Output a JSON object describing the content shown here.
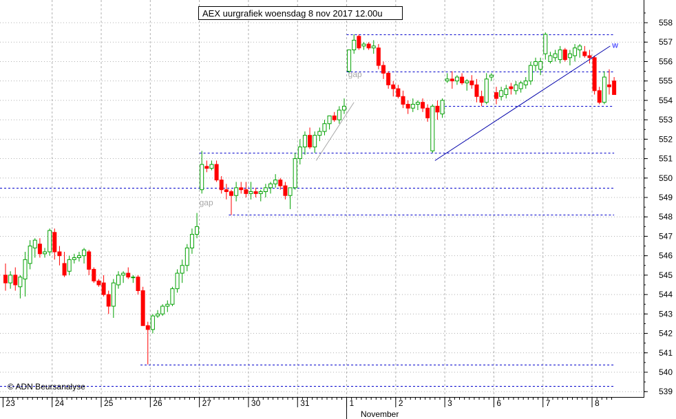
{
  "chart_data": {
    "type": "candlestick",
    "title": "AEX uurgrafiek woensdag 8 nov 2017 12.00u",
    "watermark": "© ADN Beursanalyse",
    "month_label": "November",
    "ylim": [
      538.6,
      559.0
    ],
    "y_ticks": [
      539,
      540,
      541,
      542,
      543,
      544,
      545,
      546,
      547,
      548,
      549,
      550,
      551,
      552,
      553,
      554,
      555,
      556,
      557,
      558
    ],
    "x_days": [
      {
        "label": "23",
        "start": 0
      },
      {
        "label": "24",
        "start": 10
      },
      {
        "label": "25",
        "start": 20
      },
      {
        "label": "26",
        "start": 30
      },
      {
        "label": "27",
        "start": 40
      },
      {
        "label": "30",
        "start": 50
      },
      {
        "label": "31",
        "start": 60
      },
      {
        "label": "1",
        "start": 70
      },
      {
        "label": "2",
        "start": 80
      },
      {
        "label": "3",
        "start": 90
      },
      {
        "label": "6",
        "start": 100
      },
      {
        "label": "7",
        "start": 110
      },
      {
        "label": "8",
        "start": 120
      }
    ],
    "month_start_index": 70,
    "colors": {
      "up": "#00a000",
      "down": "#ff0000",
      "level": "#0000cc",
      "trend": "#0000aa",
      "grid": "#b0b0b0",
      "annotation": "#a8a8a8",
      "label_w": "#2020ff"
    },
    "candles": [
      [
        545.0,
        545.6,
        544.2,
        544.6
      ],
      [
        544.6,
        545.2,
        544.3,
        545.0
      ],
      [
        545.0,
        545.4,
        544.2,
        544.5
      ],
      [
        544.4,
        545.0,
        543.8,
        544.9
      ],
      [
        544.8,
        546.2,
        543.9,
        545.8
      ],
      [
        545.6,
        546.8,
        545.3,
        546.5
      ],
      [
        546.4,
        546.9,
        545.9,
        546.8
      ],
      [
        546.6,
        546.9,
        545.9,
        546.1
      ],
      [
        546.1,
        546.4,
        545.9,
        546.2
      ],
      [
        546.2,
        547.4,
        546.0,
        547.3
      ],
      [
        547.2,
        547.4,
        545.8,
        546.2
      ],
      [
        546.2,
        546.5,
        545.5,
        546.0
      ],
      [
        545.6,
        546.2,
        544.9,
        545.0
      ],
      [
        545.2,
        546.0,
        545.0,
        545.8
      ],
      [
        545.8,
        546.1,
        545.6,
        545.9
      ],
      [
        545.9,
        546.2,
        545.7,
        546.0
      ],
      [
        546.0,
        546.4,
        545.6,
        546.3
      ],
      [
        546.2,
        546.3,
        545.0,
        545.3
      ],
      [
        545.3,
        545.4,
        544.6,
        544.7
      ],
      [
        544.7,
        544.8,
        544.4,
        544.5
      ],
      [
        544.6,
        545.0,
        543.9,
        544.0
      ],
      [
        544.0,
        544.2,
        543.0,
        543.4
      ],
      [
        543.4,
        544.8,
        542.8,
        544.6
      ],
      [
        544.5,
        545.2,
        544.3,
        545.0
      ],
      [
        545.0,
        545.2,
        544.6,
        545.1
      ],
      [
        545.1,
        545.4,
        544.8,
        544.9
      ],
      [
        544.9,
        545.0,
        544.6,
        544.9
      ],
      [
        544.9,
        545.0,
        544.0,
        544.2
      ],
      [
        544.2,
        544.4,
        542.5,
        542.4
      ],
      [
        542.4,
        542.6,
        540.4,
        542.2
      ],
      [
        542.2,
        543.0,
        542.0,
        542.9
      ],
      [
        542.9,
        543.2,
        542.8,
        543.0
      ],
      [
        543.0,
        543.5,
        542.9,
        543.4
      ],
      [
        543.4,
        543.7,
        543.1,
        543.5
      ],
      [
        543.5,
        544.4,
        543.4,
        544.3
      ],
      [
        544.3,
        545.3,
        544.1,
        545.1
      ],
      [
        545.1,
        545.8,
        544.6,
        545.5
      ],
      [
        545.5,
        546.6,
        545.2,
        546.4
      ],
      [
        546.4,
        547.4,
        546.1,
        547.1
      ],
      [
        547.1,
        548.2,
        546.9,
        547.5
      ],
      [
        549.4,
        551.4,
        549.2,
        550.7
      ],
      [
        550.6,
        550.9,
        550.3,
        550.5
      ],
      [
        550.5,
        550.9,
        550.4,
        550.7
      ],
      [
        550.7,
        550.9,
        549.8,
        549.9
      ],
      [
        549.9,
        550.1,
        549.2,
        549.4
      ],
      [
        549.4,
        549.7,
        548.9,
        549.3
      ],
      [
        549.3,
        549.4,
        548.1,
        549.1
      ],
      [
        549.1,
        549.8,
        548.8,
        549.5
      ],
      [
        549.5,
        549.8,
        549.2,
        549.4
      ],
      [
        549.4,
        549.8,
        549.0,
        549.2
      ],
      [
        549.2,
        549.8,
        548.9,
        549.3
      ],
      [
        549.3,
        549.5,
        549.0,
        549.2
      ],
      [
        549.2,
        549.4,
        548.8,
        549.3
      ],
      [
        549.3,
        549.7,
        549.0,
        549.5
      ],
      [
        549.5,
        549.8,
        549.2,
        549.7
      ],
      [
        549.7,
        550.2,
        549.5,
        549.9
      ],
      [
        549.9,
        550.0,
        549.4,
        549.6
      ],
      [
        549.6,
        549.8,
        548.9,
        549.1
      ],
      [
        549.1,
        549.3,
        548.4,
        549.5
      ],
      [
        549.5,
        551.3,
        549.4,
        551.0
      ],
      [
        551.0,
        552.0,
        550.7,
        551.6
      ],
      [
        551.6,
        552.4,
        551.2,
        552.2
      ],
      [
        552.2,
        552.6,
        551.5,
        551.6
      ],
      [
        551.6,
        552.4,
        551.3,
        552.2
      ],
      [
        552.2,
        552.6,
        551.9,
        552.4
      ],
      [
        552.4,
        553.0,
        552.2,
        552.8
      ],
      [
        552.8,
        553.2,
        552.5,
        553.2
      ],
      [
        553.2,
        553.4,
        552.9,
        553.0
      ],
      [
        553.0,
        553.7,
        552.8,
        553.5
      ],
      [
        553.5,
        554.1,
        553.3,
        553.7
      ],
      [
        555.5,
        556.6,
        555.4,
        556.6
      ],
      [
        556.6,
        557.4,
        556.4,
        557.1
      ],
      [
        557.3,
        557.4,
        556.6,
        556.7
      ],
      [
        556.8,
        557.0,
        556.6,
        556.9
      ],
      [
        556.9,
        557.0,
        556.6,
        556.7
      ],
      [
        556.7,
        557.1,
        556.4,
        556.8
      ],
      [
        556.7,
        556.9,
        555.6,
        555.8
      ],
      [
        555.8,
        556.0,
        555.1,
        555.4
      ],
      [
        555.4,
        555.5,
        554.6,
        554.8
      ],
      [
        554.8,
        555.0,
        554.2,
        554.6
      ],
      [
        554.6,
        554.8,
        554.1,
        554.2
      ],
      [
        554.2,
        554.5,
        553.6,
        553.8
      ],
      [
        553.8,
        554.0,
        553.3,
        553.6
      ],
      [
        553.6,
        554.1,
        553.4,
        553.8
      ],
      [
        553.8,
        554.0,
        553.5,
        553.9
      ],
      [
        553.9,
        554.1,
        553.4,
        553.6
      ],
      [
        553.6,
        553.8,
        552.9,
        553.1
      ],
      [
        551.4,
        553.8,
        551.3,
        553.7
      ],
      [
        553.7,
        554.0,
        553.0,
        553.4
      ],
      [
        553.3,
        554.1,
        553.1,
        554.0
      ],
      [
        555.0,
        555.4,
        554.9,
        555.1
      ],
      [
        555.1,
        555.5,
        554.6,
        555.0
      ],
      [
        555.0,
        555.3,
        554.8,
        555.2
      ],
      [
        555.2,
        555.4,
        554.8,
        554.9
      ],
      [
        554.9,
        555.1,
        554.5,
        555.0
      ],
      [
        555.0,
        555.3,
        554.6,
        554.8
      ],
      [
        554.8,
        555.1,
        553.9,
        554.2
      ],
      [
        554.2,
        554.5,
        553.7,
        553.9
      ],
      [
        553.9,
        555.4,
        553.8,
        555.1
      ],
      [
        555.2,
        555.4,
        555.0,
        555.3
      ],
      [
        554.4,
        554.7,
        553.8,
        554.1
      ],
      [
        554.2,
        554.7,
        554.0,
        554.5
      ],
      [
        554.3,
        554.8,
        554.1,
        554.6
      ],
      [
        554.7,
        554.9,
        554.3,
        554.6
      ],
      [
        554.5,
        555.0,
        554.3,
        554.8
      ],
      [
        554.6,
        555.0,
        554.4,
        554.9
      ],
      [
        554.8,
        555.2,
        554.6,
        555.0
      ],
      [
        555.0,
        556.0,
        554.8,
        555.8
      ],
      [
        555.8,
        556.2,
        555.5,
        556.0
      ],
      [
        555.6,
        556.2,
        555.3,
        556.0
      ],
      [
        556.4,
        557.5,
        556.1,
        557.4
      ],
      [
        556.0,
        556.5,
        555.9,
        556.3
      ],
      [
        556.2,
        556.6,
        556.0,
        556.4
      ],
      [
        556.1,
        556.8,
        555.9,
        556.6
      ],
      [
        556.6,
        556.7,
        556.0,
        556.1
      ],
      [
        556.2,
        556.6,
        555.8,
        556.4
      ],
      [
        556.3,
        556.9,
        556.0,
        556.7
      ],
      [
        556.6,
        556.9,
        556.2,
        556.8
      ],
      [
        556.5,
        556.8,
        556.2,
        556.3
      ],
      [
        556.3,
        556.6,
        555.9,
        556.2
      ],
      [
        556.2,
        556.3,
        554.3,
        554.5
      ],
      [
        554.5,
        554.7,
        553.8,
        553.9
      ],
      [
        553.9,
        555.5,
        553.8,
        555.2
      ],
      [
        554.8,
        555.6,
        554.3,
        554.7
      ],
      [
        555.0,
        555.2,
        554.3,
        554.3
      ]
    ],
    "levels": [
      {
        "y": 557.4,
        "from": 70,
        "to": 124
      },
      {
        "y": 555.5,
        "from": 70,
        "to": 124
      },
      {
        "y": 553.7,
        "from": 90,
        "to": 124
      },
      {
        "y": 551.3,
        "from": 40,
        "to": 124
      },
      {
        "y": 549.5,
        "from": -1,
        "to": 124
      },
      {
        "y": 548.1,
        "from": 46,
        "to": 124
      },
      {
        "y": 540.4,
        "from": 28,
        "to": 124
      },
      {
        "y": 539.3,
        "from": -1,
        "to": 124
      }
    ],
    "trendline": {
      "x1": 87.5,
      "y1": 550.9,
      "x2": 123.2,
      "y2": 556.8
    },
    "gap_annotations": [
      {
        "text": "gap",
        "x": 39.5,
        "y": 548.6
      },
      {
        "text": "gap",
        "x": 69.8,
        "y": 555.2
      }
    ],
    "gap_lines": [
      {
        "x1": 63.3,
        "y1": 550.9,
        "x2": 71.0,
        "y2": 553.9
      }
    ],
    "label_w": {
      "text": "w",
      "x": 123.6,
      "y": 556.7
    }
  }
}
